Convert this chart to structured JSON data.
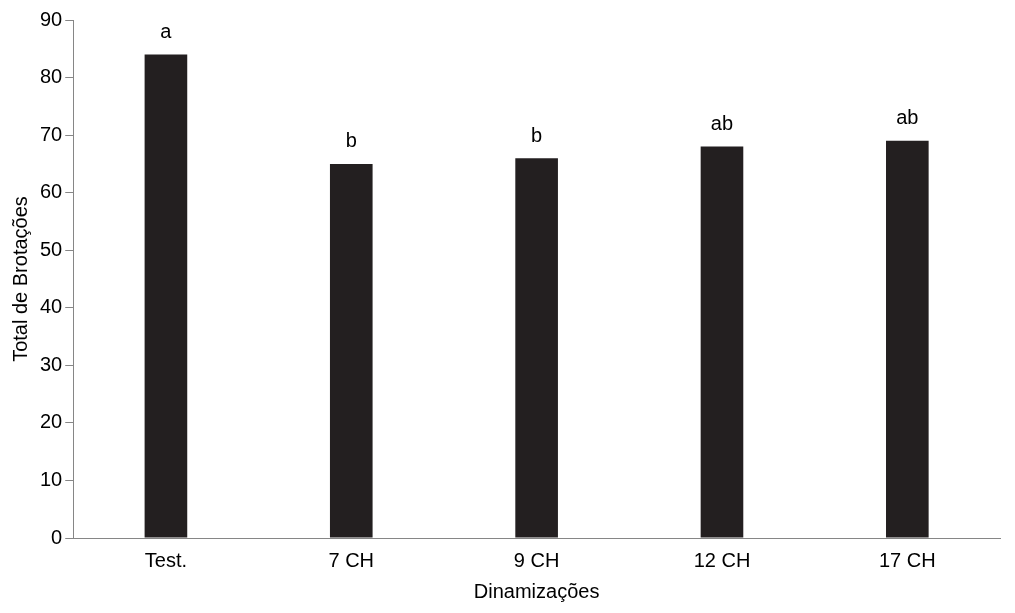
{
  "chart_data": {
    "type": "bar",
    "xlabel": "Dinamizações",
    "ylabel": "Total de Brotações",
    "categories": [
      "Test.",
      "7 CH",
      "9 CH",
      "12 CH",
      "17 CH"
    ],
    "values": [
      84,
      65,
      66,
      68,
      69
    ],
    "color": "#231f20",
    "ylim": [
      0,
      90
    ],
    "yticks": [
      0,
      10,
      20,
      30,
      40,
      50,
      60,
      70,
      80,
      90
    ],
    "grid": false,
    "annotations": [
      {
        "text": "a",
        "x": "Test.",
        "y": 84
      },
      {
        "text": "b",
        "x": "7 CH",
        "y": 65
      },
      {
        "text": "b",
        "x": "9 CH",
        "y": 66
      },
      {
        "text": "ab",
        "x": "12 CH",
        "y": 68
      },
      {
        "text": "ab",
        "x": "17 CH",
        "y": 69
      }
    ]
  }
}
